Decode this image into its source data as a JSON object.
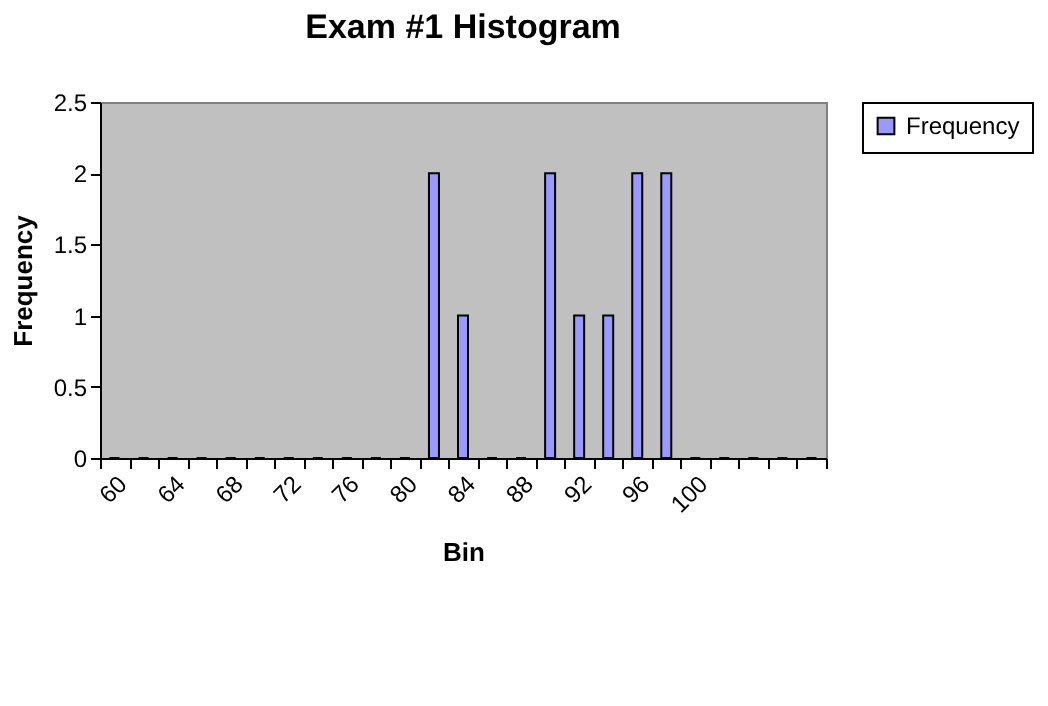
{
  "chart_data": {
    "type": "bar",
    "title": "Exam #1 Histogram",
    "xlabel": "Bin",
    "ylabel": "Frequency",
    "categories": [
      "60",
      null,
      "64",
      null,
      "68",
      null,
      "72",
      null,
      "76",
      null,
      "80",
      null,
      "84",
      null,
      "88",
      null,
      "92",
      null,
      "96",
      null,
      "100",
      null,
      null,
      null,
      null
    ],
    "series": [
      {
        "name": "Frequency",
        "color": "#9999ff",
        "values": [
          0,
          0,
          0,
          0,
          0,
          0,
          0,
          0,
          0,
          0,
          0,
          2,
          1,
          0,
          0,
          2,
          1,
          1,
          2,
          2,
          0,
          0,
          0,
          0,
          0
        ]
      }
    ],
    "ylim": [
      0,
      2.5
    ],
    "yticks": [
      0,
      0.5,
      1,
      1.5,
      2,
      2.5
    ],
    "grid": false,
    "legend": "right"
  }
}
